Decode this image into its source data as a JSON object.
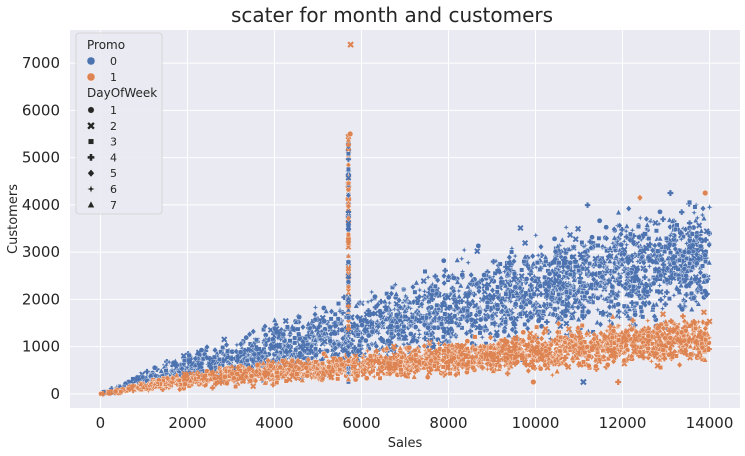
{
  "chart_data": {
    "type": "scatter",
    "title": "scater for month and customers",
    "xlabel": "Sales",
    "ylabel": "Customers",
    "xlim": [
      -700,
      14700
    ],
    "ylim": [
      -300,
      7700
    ],
    "xticks": [
      0,
      2000,
      4000,
      6000,
      8000,
      10000,
      12000,
      14000
    ],
    "yticks": [
      0,
      1000,
      2000,
      3000,
      4000,
      5000,
      6000,
      7000
    ],
    "grid": true,
    "legend_position": "top-left",
    "hue": {
      "name": "Promo",
      "levels": [
        {
          "label": "0",
          "color": "#4c72b0"
        },
        {
          "label": "1",
          "color": "#dd8452"
        }
      ]
    },
    "style": {
      "name": "DayOfWeek",
      "levels": [
        {
          "label": "1",
          "marker": "circle"
        },
        {
          "label": "2",
          "marker": "x"
        },
        {
          "label": "3",
          "marker": "square"
        },
        {
          "label": "4",
          "marker": "plus"
        },
        {
          "label": "5",
          "marker": "diamond"
        },
        {
          "label": "6",
          "marker": "star"
        },
        {
          "label": "7",
          "marker": "triangle"
        }
      ]
    },
    "bands": [
      {
        "promo": "0",
        "points": [
          [
            0,
            0
          ],
          [
            2000,
            550
          ],
          [
            4000,
            900
          ],
          [
            6000,
            1300
          ],
          [
            8000,
            1800
          ],
          [
            10000,
            2200
          ],
          [
            12000,
            2600
          ],
          [
            14000,
            2900
          ]
        ],
        "spread": [
          [
            0,
            10
          ],
          [
            2000,
            300
          ],
          [
            4000,
            500
          ],
          [
            6000,
            650
          ],
          [
            8000,
            800
          ],
          [
            10000,
            900
          ],
          [
            12000,
            1000
          ],
          [
            14000,
            1050
          ]
        ]
      },
      {
        "promo": "1",
        "points": [
          [
            0,
            0
          ],
          [
            2000,
            300
          ],
          [
            4000,
            480
          ],
          [
            6000,
            600
          ],
          [
            8000,
            750
          ],
          [
            10000,
            900
          ],
          [
            12000,
            1050
          ],
          [
            14000,
            1200
          ]
        ],
        "spread": [
          [
            0,
            10
          ],
          [
            2000,
            150
          ],
          [
            4000,
            200
          ],
          [
            6000,
            250
          ],
          [
            8000,
            300
          ],
          [
            10000,
            350
          ],
          [
            12000,
            400
          ],
          [
            14000,
            450
          ]
        ]
      }
    ],
    "vertical_cluster": {
      "x": 5700,
      "y_range": [
        200,
        5500
      ]
    },
    "outliers": [
      {
        "x": 5750,
        "y": 7390,
        "promo": "1",
        "day": "2"
      },
      {
        "x": 5740,
        "y": 5500,
        "promo": "1",
        "day": "1"
      },
      {
        "x": 13100,
        "y": 4250,
        "promo": "0",
        "day": "4"
      },
      {
        "x": 12400,
        "y": 4150,
        "promo": "1",
        "day": "5"
      },
      {
        "x": 13900,
        "y": 4250,
        "promo": "1",
        "day": "1"
      },
      {
        "x": 14000,
        "y": 3950,
        "promo": "0",
        "day": "6"
      },
      {
        "x": 9950,
        "y": 250,
        "promo": "1",
        "day": "1"
      },
      {
        "x": 11100,
        "y": 250,
        "promo": "0",
        "day": "2"
      },
      {
        "x": 11900,
        "y": 250,
        "promo": "1",
        "day": "4"
      }
    ]
  }
}
